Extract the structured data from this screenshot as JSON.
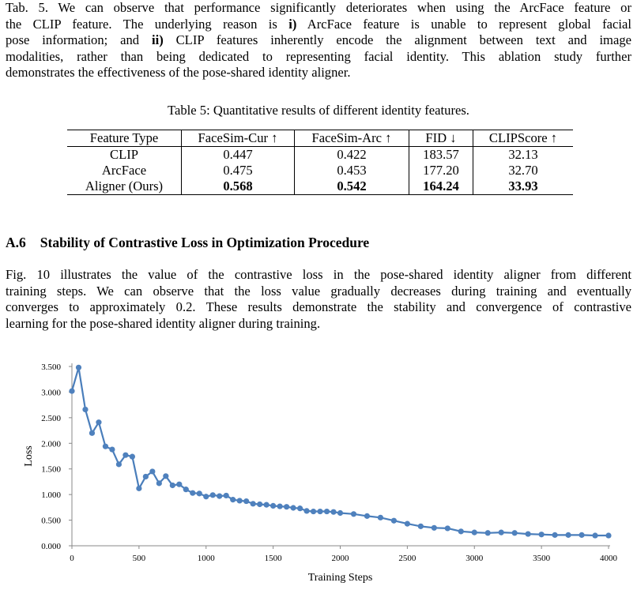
{
  "intro_lines": [
    "Tab. 5. We can observe that performance significantly deteriorates when using the ArcFace feature or",
    "the CLIP feature. The underlying reason is |i)| ArcFace feature is unable to represent global facial",
    "pose information; and |ii)| CLIP features inherently encode the alignment between text and image",
    "modalities, rather than being dedicated to representing facial identity. This ablation study further",
    "demonstrates the effectiveness of the pose-shared identity aligner."
  ],
  "table": {
    "caption": "Table 5: Quantitative results of different identity features.",
    "headers": [
      "Feature Type",
      "FaceSim-Cur ↑",
      "FaceSim-Arc ↑",
      "FID ↓",
      "CLIPScore ↑"
    ],
    "rows": [
      {
        "cells": [
          "CLIP",
          "0.447",
          "0.422",
          "183.57",
          "32.13"
        ],
        "bold": false
      },
      {
        "cells": [
          "ArcFace",
          "0.475",
          "0.453",
          "177.20",
          "32.70"
        ],
        "bold": false
      },
      {
        "cells": [
          "Aligner (Ours)",
          "0.568",
          "0.542",
          "164.24",
          "33.93"
        ],
        "bold": true
      }
    ]
  },
  "section": {
    "number": "A.6",
    "title": "Stability of Contrastive Loss in Optimization Procedure"
  },
  "body_lines": [
    "Fig. 10 illustrates the value of the contrastive loss in the pose-shared identity aligner from different",
    "training steps. We can observe that the loss value gradually decreases during training and eventually",
    "converges to approximately 0.2. These results demonstrate the stability and convergence of contrastive",
    "learning for the pose-shared identity aligner during training."
  ],
  "chart_data": {
    "type": "line",
    "xlabel": "Training Steps",
    "ylabel": "Loss",
    "xlim": [
      0,
      4000
    ],
    "ylim": [
      0,
      3.5
    ],
    "xticks": [
      0,
      500,
      1000,
      1500,
      2000,
      2500,
      3000,
      3500,
      4000
    ],
    "yticks": [
      "0.000",
      "0.500",
      "1.000",
      "1.500",
      "2.000",
      "2.500",
      "3.000",
      "3.500"
    ],
    "grid": false,
    "legend": "none",
    "line_color": "#4a7ebb",
    "marker_color": "#4f81bd",
    "x": [
      0,
      50,
      100,
      150,
      200,
      250,
      300,
      350,
      400,
      450,
      500,
      550,
      600,
      650,
      700,
      750,
      800,
      850,
      900,
      950,
      1000,
      1050,
      1100,
      1150,
      1200,
      1250,
      1300,
      1350,
      1400,
      1450,
      1500,
      1550,
      1600,
      1650,
      1700,
      1750,
      1800,
      1850,
      1900,
      1950,
      2000,
      2100,
      2200,
      2300,
      2400,
      2500,
      2600,
      2700,
      2800,
      2900,
      3000,
      3100,
      3200,
      3300,
      3400,
      3500,
      3600,
      3700,
      3800,
      3900,
      4000
    ],
    "y": [
      3.02,
      3.48,
      2.66,
      2.2,
      2.41,
      1.94,
      1.88,
      1.59,
      1.77,
      1.74,
      1.12,
      1.35,
      1.45,
      1.22,
      1.36,
      1.18,
      1.2,
      1.1,
      1.03,
      1.02,
      0.96,
      0.99,
      0.97,
      0.98,
      0.9,
      0.88,
      0.87,
      0.82,
      0.81,
      0.8,
      0.78,
      0.77,
      0.76,
      0.74,
      0.73,
      0.68,
      0.67,
      0.67,
      0.67,
      0.66,
      0.64,
      0.62,
      0.58,
      0.55,
      0.49,
      0.43,
      0.38,
      0.35,
      0.34,
      0.28,
      0.26,
      0.25,
      0.26,
      0.25,
      0.23,
      0.22,
      0.21,
      0.21,
      0.21,
      0.2,
      0.2
    ]
  }
}
